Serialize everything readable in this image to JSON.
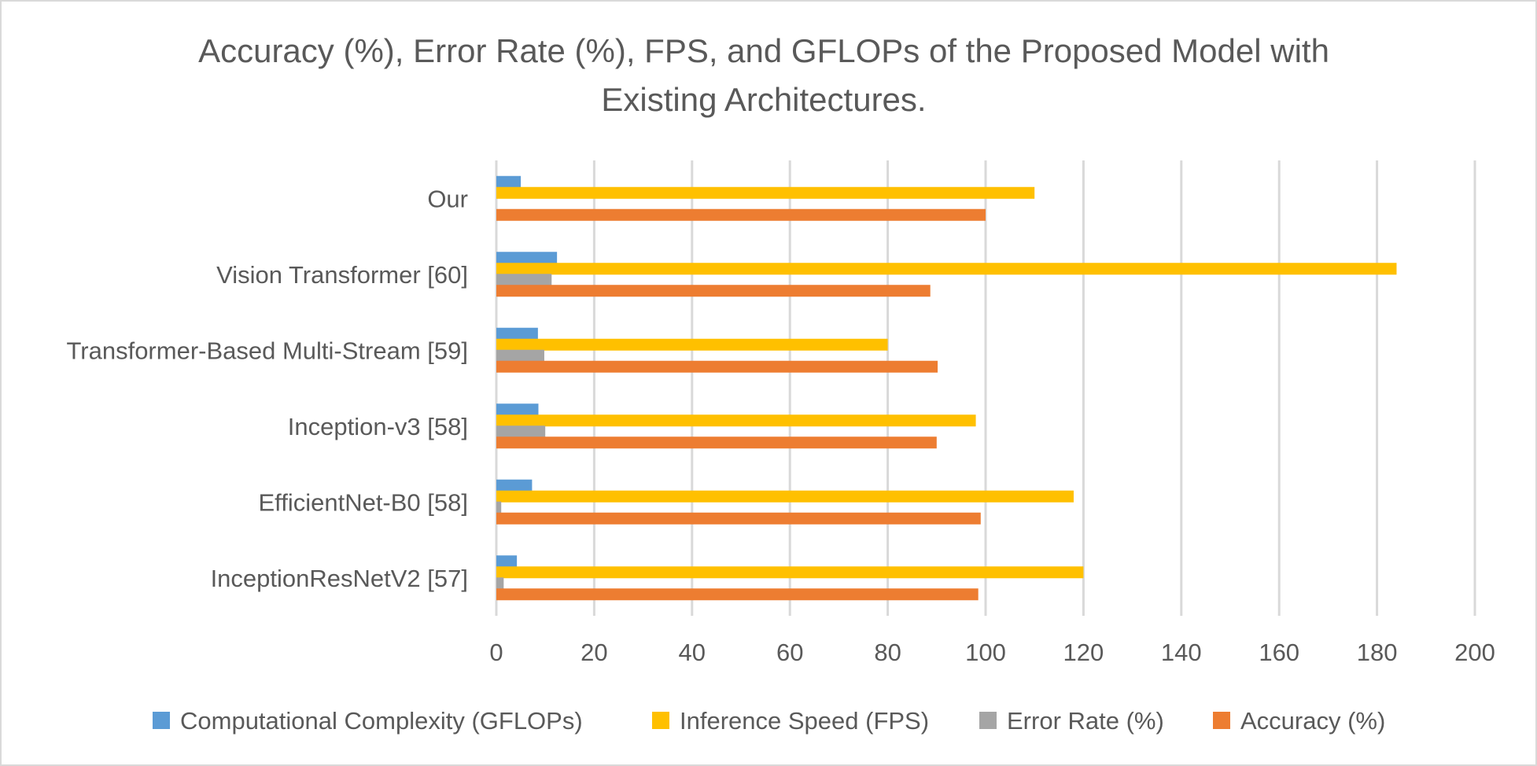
{
  "chart_data": {
    "type": "bar",
    "orientation": "horizontal",
    "title": "Accuracy (%), Error Rate (%), FPS, and GFLOPs of the Proposed Model with Existing Architectures.",
    "title_lines": [
      "Accuracy (%), Error Rate (%), FPS, and GFLOPs of the Proposed Model with",
      "Existing Architectures."
    ],
    "categories": [
      "Our",
      "Vision Transformer [60]",
      "Transformer-Based Multi-Stream [59]",
      "Inception-v3 [58]",
      "EfficientNet-B0 [58]",
      "InceptionResNetV2 [57]"
    ],
    "series": [
      {
        "name": "Computational Complexity (GFLOPs)",
        "color": "#5b9bd5",
        "values": [
          5,
          12.4,
          8.5,
          8.6,
          7.3,
          4.2
        ]
      },
      {
        "name": "Inference Speed (FPS)",
        "color": "#ffc000",
        "values": [
          110,
          184,
          80,
          98,
          118,
          120
        ]
      },
      {
        "name": "Error Rate (%)",
        "color": "#a5a5a5",
        "values": [
          0,
          11.3,
          9.8,
          10,
          1,
          1.5
        ]
      },
      {
        "name": "Accuracy (%)",
        "color": "#ed7d31",
        "values": [
          100,
          88.7,
          90.2,
          90,
          99,
          98.5
        ]
      }
    ],
    "xlim": [
      0,
      200
    ],
    "xticks": [
      "0",
      "20",
      "40",
      "60",
      "80",
      "100",
      "120",
      "140",
      "160",
      "180",
      "200"
    ],
    "xlabel": "",
    "ylabel": "",
    "grid": true,
    "legend_position": "bottom"
  }
}
